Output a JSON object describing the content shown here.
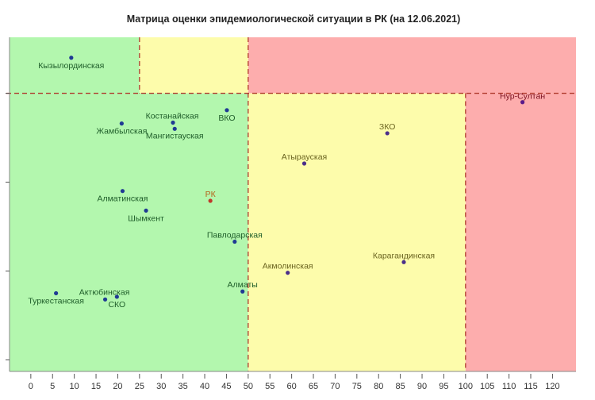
{
  "chart_data": {
    "type": "scatter",
    "title": "Матрица оценки эпидемиологической ситуации в РК (на 12.06.2021)",
    "xlabel": "",
    "ylabel": "",
    "xlim": [
      -4.9,
      125.4
    ],
    "ylim": [
      -0.13,
      3.63
    ],
    "x_ticks": [
      0,
      5,
      10,
      15,
      20,
      25,
      30,
      35,
      40,
      45,
      50,
      55,
      60,
      65,
      70,
      75,
      80,
      85,
      90,
      95,
      100,
      105,
      110,
      115,
      120
    ],
    "y_ticks": [
      0,
      1,
      2,
      3
    ],
    "y_tick_labels_shown": false,
    "grid": false,
    "thresholds": {
      "x": [
        25,
        50,
        100
      ],
      "y": 3
    },
    "zone_colors": {
      "green": "#b3f7ae",
      "yellow": "#fdfcab",
      "red": "#fdadad",
      "dash": "#b03a2e"
    },
    "points": [
      {
        "name": "Кызылординская",
        "x": 9.3,
        "y": 3.4
      },
      {
        "name": "Нур-Султан",
        "x": 113.1,
        "y": 2.9
      },
      {
        "name": "Жамбылская",
        "x": 20.9,
        "y": 2.66
      },
      {
        "name": "Костанайская",
        "x": 32.7,
        "y": 2.67
      },
      {
        "name": "Мангистауская",
        "x": 33.1,
        "y": 2.6
      },
      {
        "name": "ВКО",
        "x": 45.1,
        "y": 2.81
      },
      {
        "name": "ЗКО",
        "x": 82.0,
        "y": 2.55
      },
      {
        "name": "Атырауская",
        "x": 62.9,
        "y": 2.21
      },
      {
        "name": "Алматинская",
        "x": 21.1,
        "y": 1.9
      },
      {
        "name": "РК",
        "x": 41.3,
        "y": 1.79,
        "highlight": true
      },
      {
        "name": "Шымкент",
        "x": 26.5,
        "y": 1.68
      },
      {
        "name": "Павлодарская",
        "x": 46.9,
        "y": 1.33
      },
      {
        "name": "Карагандинская",
        "x": 85.8,
        "y": 1.1
      },
      {
        "name": "Акмолинская",
        "x": 59.1,
        "y": 0.98
      },
      {
        "name": "Алматы",
        "x": 48.7,
        "y": 0.77
      },
      {
        "name": "Туркестанская",
        "x": 5.8,
        "y": 0.75
      },
      {
        "name": "Актюбинская",
        "x": 17.1,
        "y": 0.68
      },
      {
        "name": "СКО",
        "x": 19.8,
        "y": 0.71
      }
    ]
  }
}
